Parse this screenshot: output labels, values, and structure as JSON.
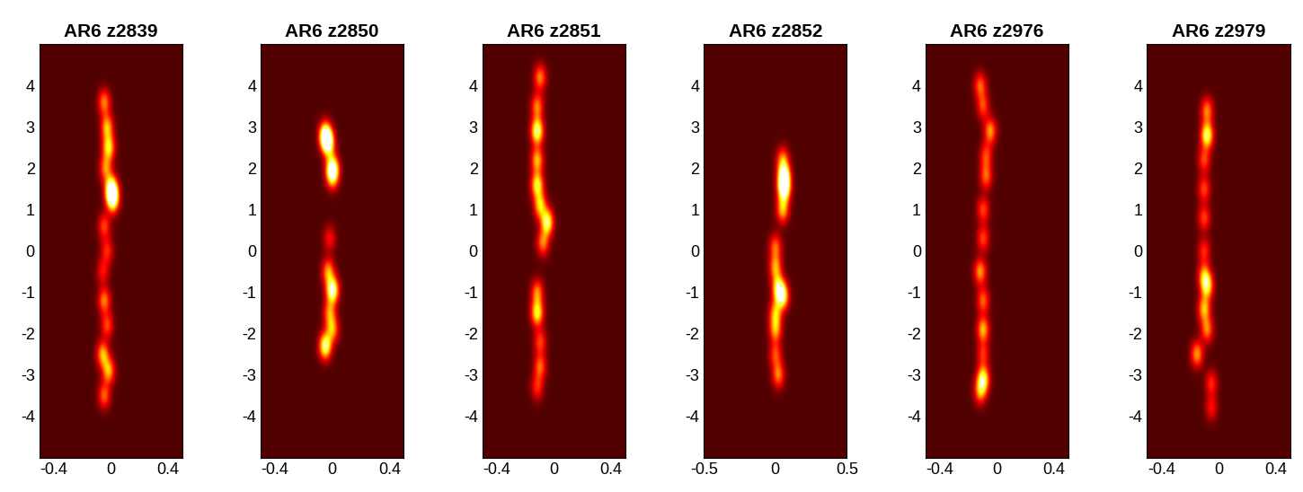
{
  "chart_data": [
    {
      "type": "image",
      "title": "AR6 z2839",
      "xlim": [
        -0.5,
        0.5
      ],
      "ylim": [
        -5,
        5
      ],
      "xticks": [
        -0.4,
        0,
        0.4
      ],
      "yticks": [
        -4,
        -3,
        -2,
        -1,
        0,
        1,
        2,
        3,
        4
      ],
      "spots": [
        [
          -0.05,
          3.6,
          0.5
        ],
        [
          -0.03,
          3.0,
          0.6
        ],
        [
          -0.02,
          2.5,
          0.7
        ],
        [
          -0.04,
          2.0,
          0.5
        ],
        [
          0.0,
          1.5,
          1.0
        ],
        [
          0.01,
          1.25,
          0.9
        ],
        [
          -0.05,
          0.6,
          0.4
        ],
        [
          -0.03,
          0.0,
          0.35
        ],
        [
          -0.06,
          -0.5,
          0.3
        ],
        [
          -0.05,
          -1.2,
          0.5
        ],
        [
          -0.03,
          -1.8,
          0.4
        ],
        [
          -0.06,
          -2.5,
          0.6
        ],
        [
          -0.02,
          -2.9,
          0.6
        ],
        [
          -0.05,
          -3.5,
          0.45
        ]
      ]
    },
    {
      "type": "image",
      "title": "AR6 z2850",
      "xlim": [
        -0.5,
        0.5
      ],
      "ylim": [
        -5,
        5
      ],
      "xticks": [
        -0.4,
        0,
        0.4
      ],
      "yticks": [
        -4,
        -3,
        -2,
        -1,
        0,
        1,
        2,
        3,
        4
      ],
      "spots": [
        [
          -0.05,
          2.8,
          1.0
        ],
        [
          -0.03,
          2.6,
          0.9
        ],
        [
          0.0,
          2.0,
          0.95
        ],
        [
          0.0,
          1.8,
          0.5
        ],
        [
          -0.02,
          0.3,
          0.3
        ],
        [
          -0.03,
          -0.5,
          0.55
        ],
        [
          0.0,
          -0.95,
          1.0
        ],
        [
          -0.02,
          -1.5,
          0.5
        ],
        [
          0.0,
          -1.9,
          0.55
        ],
        [
          -0.05,
          -2.3,
          0.9
        ]
      ]
    },
    {
      "type": "image",
      "title": "AR6 z2851",
      "xlim": [
        -0.5,
        0.5
      ],
      "ylim": [
        -5,
        5
      ],
      "xticks": [
        -0.4,
        0,
        0.4
      ],
      "yticks": [
        -4,
        -3,
        -2,
        -1,
        0,
        1,
        2,
        3,
        4
      ],
      "spots": [
        [
          -0.1,
          4.2,
          0.5
        ],
        [
          -0.12,
          3.5,
          0.5
        ],
        [
          -0.12,
          2.9,
          0.9
        ],
        [
          -0.12,
          2.2,
          0.6
        ],
        [
          -0.12,
          1.6,
          0.75
        ],
        [
          -0.1,
          1.1,
          0.65
        ],
        [
          -0.05,
          0.7,
          0.85
        ],
        [
          -0.08,
          0.2,
          0.5
        ],
        [
          -0.12,
          -1.0,
          0.5
        ],
        [
          -0.12,
          -1.5,
          0.75
        ],
        [
          -0.1,
          -2.2,
          0.4
        ],
        [
          -0.1,
          -2.8,
          0.45
        ],
        [
          -0.12,
          -3.3,
          0.35
        ]
      ]
    },
    {
      "type": "image",
      "title": "AR6 z2852",
      "xlim": [
        -0.5,
        0.5
      ],
      "ylim": [
        -5,
        5
      ],
      "xticks": [
        -0.5,
        0,
        0.5
      ],
      "yticks": [
        -4,
        -3,
        -2,
        -1,
        0,
        1,
        2,
        3,
        4
      ],
      "spots": [
        [
          0.05,
          2.2,
          0.5
        ],
        [
          0.06,
          1.8,
          1.0
        ],
        [
          0.06,
          1.5,
          1.0
        ],
        [
          0.05,
          1.0,
          0.6
        ],
        [
          0.0,
          0.1,
          0.45
        ],
        [
          0.0,
          -0.4,
          0.55
        ],
        [
          0.02,
          -0.9,
          0.75
        ],
        [
          0.05,
          -1.1,
          0.8
        ],
        [
          0.0,
          -1.5,
          0.55
        ],
        [
          0.0,
          -1.9,
          0.55
        ],
        [
          0.0,
          -2.5,
          0.4
        ],
        [
          0.02,
          -3.0,
          0.5
        ]
      ]
    },
    {
      "type": "image",
      "title": "AR6 z2976",
      "xlim": [
        -0.5,
        0.5
      ],
      "ylim": [
        -5,
        5
      ],
      "xticks": [
        -0.4,
        0,
        0.4
      ],
      "yticks": [
        -4,
        -3,
        -2,
        -1,
        0,
        1,
        2,
        3,
        4
      ],
      "spots": [
        [
          -0.12,
          4.0,
          0.45
        ],
        [
          -0.1,
          3.5,
          0.4
        ],
        [
          -0.05,
          2.9,
          0.55
        ],
        [
          -0.08,
          2.3,
          0.4
        ],
        [
          -0.08,
          1.8,
          0.45
        ],
        [
          -0.1,
          1.0,
          0.4
        ],
        [
          -0.1,
          0.3,
          0.4
        ],
        [
          -0.12,
          -0.5,
          0.55
        ],
        [
          -0.1,
          -1.2,
          0.45
        ],
        [
          -0.1,
          -1.9,
          0.6
        ],
        [
          -0.1,
          -2.5,
          0.35
        ],
        [
          -0.1,
          -3.1,
          0.8
        ],
        [
          -0.12,
          -3.4,
          0.5
        ]
      ]
    },
    {
      "type": "image",
      "title": "AR6 z2979",
      "xlim": [
        -0.5,
        0.5
      ],
      "ylim": [
        -5,
        5
      ],
      "xticks": [
        -0.4,
        0,
        0.4
      ],
      "yticks": [
        -4,
        -3,
        -2,
        -1,
        0,
        1,
        2,
        3,
        4
      ],
      "spots": [
        [
          -0.08,
          3.4,
          0.5
        ],
        [
          -0.08,
          2.8,
          0.85
        ],
        [
          -0.1,
          2.2,
          0.4
        ],
        [
          -0.1,
          1.5,
          0.4
        ],
        [
          -0.1,
          0.8,
          0.4
        ],
        [
          -0.1,
          0.0,
          0.35
        ],
        [
          -0.1,
          -0.6,
          0.5
        ],
        [
          -0.08,
          -0.85,
          0.7
        ],
        [
          -0.1,
          -1.4,
          0.6
        ],
        [
          -0.08,
          -1.9,
          0.5
        ],
        [
          -0.15,
          -2.5,
          0.55
        ],
        [
          -0.05,
          -3.2,
          0.35
        ],
        [
          -0.05,
          -3.8,
          0.3
        ]
      ]
    }
  ]
}
